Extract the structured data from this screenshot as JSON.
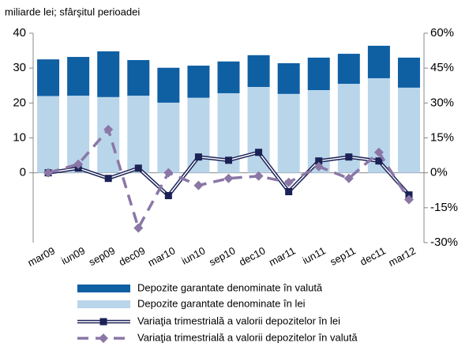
{
  "chart_data": {
    "type": "bar",
    "subtitle": "miliarde lei; sfârşitul perioadei",
    "categories": [
      "mar09",
      "iun09",
      "sep09",
      "dec09",
      "mar10",
      "iun10",
      "sep10",
      "dec10",
      "mar11",
      "iun11",
      "sep11",
      "dec11",
      "mar12"
    ],
    "series": [
      {
        "name": "Depozite garantate denominate în valută",
        "type": "bar",
        "color": "#0f5fa3",
        "values": [
          10.5,
          11.1,
          13.1,
          10.2,
          10.0,
          9.2,
          9.1,
          9.1,
          8.8,
          9.3,
          8.6,
          9.3,
          8.6
        ]
      },
      {
        "name": "Depozite garantate denominate în lei",
        "type": "bar",
        "color": "#b9d5ea",
        "values": [
          22.0,
          22.1,
          21.7,
          22.1,
          20.1,
          21.5,
          22.8,
          24.6,
          22.6,
          23.7,
          25.5,
          27.1,
          24.4
        ]
      },
      {
        "name": "Variaţia trimestrială a valorii depozitelor în lei",
        "type": "line",
        "axis": "y2",
        "color": "#1b2256",
        "dashed": false,
        "values": [
          0,
          2,
          -2.4,
          2,
          -9.8,
          6.8,
          5.4,
          8.8,
          -8.1,
          5.1,
          6.8,
          5.1,
          -9.5
        ]
      },
      {
        "name": "Variaţia trimestrială a valorii depozitelor în valută",
        "type": "line",
        "axis": "y2",
        "color": "#8a77a6",
        "dashed": true,
        "values": [
          0,
          3.7,
          18.6,
          -23.7,
          0,
          -5.4,
          -2.4,
          -1.4,
          -4.1,
          2.7,
          -2.4,
          8.8,
          -11.5
        ]
      }
    ],
    "ylim": [
      -20,
      40
    ],
    "yticks": [
      0,
      10,
      20,
      30,
      40
    ],
    "y2lim": [
      -30,
      60
    ],
    "y2ticks": [
      {
        "value": -30,
        "label": "-30%"
      },
      {
        "value": -15,
        "label": "-15%"
      },
      {
        "value": 0,
        "label": "0%"
      },
      {
        "value": 15,
        "label": "15%"
      },
      {
        "value": 30,
        "label": "30%"
      },
      {
        "value": 45,
        "label": "45%"
      },
      {
        "value": 60,
        "label": "60%"
      }
    ],
    "grid": false
  }
}
